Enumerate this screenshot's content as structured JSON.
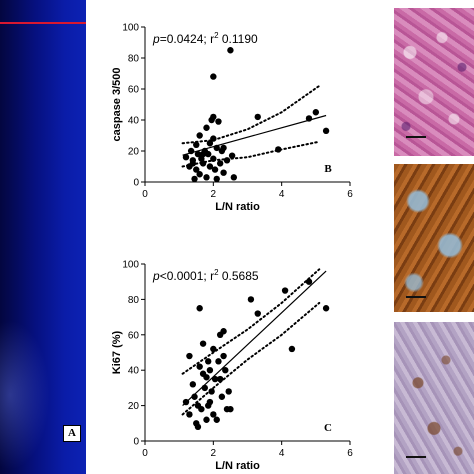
{
  "panel_a": {
    "letter": "A",
    "colors": {
      "background": "#06107e",
      "top_line": "#d81830"
    }
  },
  "charts": [
    {
      "id": "B",
      "letter": "B",
      "annotation": {
        "p_text": "p",
        "p_rest": "=0.0424; r",
        "sup": "2",
        "r_value": " 0.1190"
      },
      "ylabel": "caspase 3/500",
      "xlabel": "L/N ratio",
      "xticks": [
        "0",
        "2",
        "4",
        "6"
      ],
      "yticks": [
        "0",
        "20",
        "40",
        "60",
        "80",
        "100"
      ]
    },
    {
      "id": "C",
      "letter": "C",
      "annotation": {
        "p_text": "p",
        "p_rest": "<0.0001; r",
        "sup": "2",
        "r_value": " 0.5685"
      },
      "ylabel": "Ki67 (%)",
      "xlabel": "L/N ratio",
      "xticks": [
        "0",
        "2",
        "4",
        "6"
      ],
      "yticks": [
        "0",
        "20",
        "40",
        "60",
        "80",
        "100"
      ]
    }
  ],
  "chart_data": [
    {
      "type": "scatter",
      "xlabel": "L/N ratio",
      "ylabel": "caspase 3/500",
      "xlim": [
        0,
        6
      ],
      "ylim": [
        0,
        100
      ],
      "annotation": "p=0.0424; r2 0.1190",
      "regression": {
        "x": [
          1.1,
          5.3
        ],
        "y": [
          17.3,
          42.9
        ]
      },
      "ci_upper": {
        "x": [
          1.1,
          2.0,
          3.0,
          4.0,
          5.1
        ],
        "y": [
          25,
          27,
          34,
          45,
          62
        ]
      },
      "ci_lower": {
        "x": [
          1.1,
          2.0,
          3.0,
          4.0,
          5.1
        ],
        "y": [
          10,
          14,
          16,
          21,
          26
        ]
      },
      "points": {
        "x": [
          1.2,
          1.3,
          1.35,
          1.4,
          1.45,
          1.5,
          1.5,
          1.55,
          1.6,
          1.6,
          1.65,
          1.7,
          1.75,
          1.8,
          1.8,
          1.85,
          1.9,
          1.9,
          1.95,
          2.0,
          2.0,
          2.05,
          2.1,
          2.1,
          2.15,
          2.2,
          2.25,
          2.3,
          2.4,
          2.5,
          2.6,
          1.4,
          1.7,
          2.0,
          2.3,
          3.3,
          3.9,
          4.8,
          5.0,
          5.3,
          2.0,
          2.55
        ],
        "y": [
          16,
          10,
          20,
          14,
          2,
          24,
          8,
          18,
          30,
          5,
          15,
          12,
          20,
          35,
          3,
          18,
          10,
          25,
          40,
          15,
          42,
          8,
          22,
          2,
          39,
          12,
          20,
          6,
          14,
          85,
          3,
          12,
          18,
          68,
          22,
          42,
          21,
          41,
          45,
          33,
          28,
          17
        ]
      }
    },
    {
      "type": "scatter",
      "xlabel": "L/N ratio",
      "ylabel": "Ki67 (%)",
      "xlim": [
        0,
        6
      ],
      "ylim": [
        0,
        100
      ],
      "annotation": "p<0.0001; r2 0.5685",
      "regression": {
        "x": [
          1.1,
          5.3
        ],
        "y": [
          20,
          96
        ]
      },
      "ci_upper": {
        "x": [
          1.1,
          2.0,
          3.0,
          4.0,
          5.1
        ],
        "y": [
          38,
          50,
          63,
          78,
          97
        ]
      },
      "ci_lower": {
        "x": [
          1.1,
          2.0,
          3.0,
          4.0,
          5.1
        ],
        "y": [
          15,
          30,
          46,
          60,
          78
        ]
      },
      "points": {
        "x": [
          1.2,
          1.3,
          1.3,
          1.4,
          1.45,
          1.5,
          1.55,
          1.6,
          1.6,
          1.65,
          1.7,
          1.75,
          1.8,
          1.8,
          1.85,
          1.9,
          1.9,
          1.95,
          2.0,
          2.0,
          2.05,
          2.1,
          2.15,
          2.2,
          2.2,
          2.25,
          2.3,
          2.35,
          2.4,
          2.45,
          2.5,
          3.1,
          3.3,
          4.1,
          4.3,
          4.8,
          5.3,
          1.55,
          1.85,
          2.3,
          1.7
        ],
        "y": [
          22,
          48,
          15,
          32,
          25,
          10,
          20,
          75,
          42,
          18,
          38,
          30,
          12,
          36,
          45,
          22,
          40,
          28,
          15,
          52,
          35,
          12,
          45,
          60,
          35,
          25,
          62,
          40,
          18,
          28,
          18,
          80,
          72,
          85,
          52,
          90,
          75,
          8,
          20,
          48,
          55
        ]
      }
    }
  ]
}
